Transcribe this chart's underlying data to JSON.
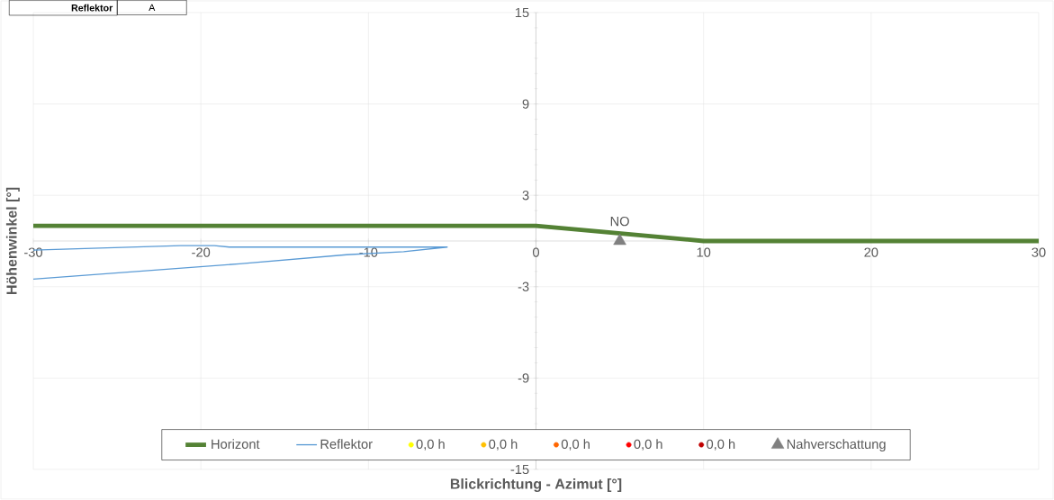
{
  "chart_data": {
    "type": "line",
    "xlabel": "Blickrichtung - Azimut [°]",
    "ylabel": "Höhenwinkel [°]",
    "xlim": [
      -30,
      30
    ],
    "xticks": [
      -30,
      -20,
      -10,
      0,
      10,
      20,
      30
    ],
    "ylim": [
      -15,
      15
    ],
    "yticks": [
      -15,
      -9,
      -3,
      3,
      9,
      15
    ],
    "grid": true,
    "legend": "bottom",
    "annotations": [
      {
        "text": "NO",
        "x": 5,
        "y": 0
      },
      "Reflektor",
      "A"
    ],
    "series": [
      {
        "name": "Horizont",
        "color": "#548235",
        "x": [
          -30,
          0,
          10,
          30
        ],
        "values": [
          1.0,
          1.0,
          0,
          0
        ]
      },
      {
        "name": "Reflektor",
        "color": "#5b9bd5",
        "x": [
          -30,
          -21.2,
          -19.2,
          -18.3,
          -5.3,
          -7.9,
          -11.3,
          -17.7,
          -30
        ],
        "values": [
          -0.6,
          -0.3,
          -0.3,
          -0.4,
          -0.4,
          -0.7,
          -0.9,
          -1.5,
          -2.5
        ]
      },
      {
        "name": "0,0 h",
        "color": "#ffff00",
        "type": "scatter"
      },
      {
        "name": "0,0 h",
        "color": "#ffc000",
        "type": "scatter"
      },
      {
        "name": "0,0 h",
        "color": "#ff6600",
        "type": "scatter"
      },
      {
        "name": "0,0 h",
        "color": "#ff0000",
        "type": "scatter"
      },
      {
        "name": "0,0 h",
        "color": "#c00000",
        "type": "scatter"
      },
      {
        "name": "Nahverschattung",
        "color": "#808080",
        "type": "scatter",
        "marker": "triangle",
        "x": [
          5
        ],
        "values": [
          0
        ]
      }
    ]
  }
}
